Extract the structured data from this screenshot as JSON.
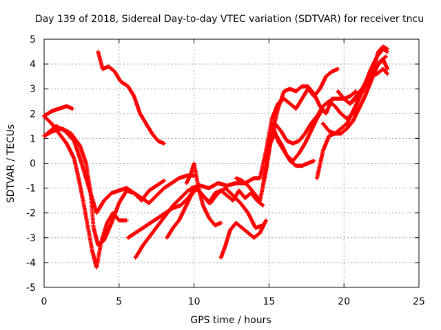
{
  "chart_data": {
    "type": "scatter",
    "title": "Day 139 of 2018, Sidereal Day-to-day VTEC variation (SDTVAR) for receiver tncu",
    "xlabel": "GPS time / hours",
    "ylabel": "SDTVAR / TECUs",
    "xlim": [
      0,
      25
    ],
    "ylim": [
      -5,
      5
    ],
    "xticks": [
      "0",
      "5",
      "10",
      "15",
      "20",
      "25"
    ],
    "yticks": [
      "5",
      "4",
      "3",
      "2",
      "1",
      "0",
      "-1",
      "-2",
      "-3",
      "-4",
      "-5"
    ],
    "grid": true,
    "marker": "+",
    "color": "#ff0000",
    "series": [
      {
        "x": [
          0.0,
          0.5,
          1.0,
          1.5,
          1.9
        ],
        "y": [
          1.9,
          2.1,
          2.2,
          2.3,
          2.2
        ]
      },
      {
        "x": [
          0.0,
          0.6,
          1.2,
          1.8,
          2.4,
          2.8,
          3.1,
          3.3,
          3.6,
          4.0,
          4.5,
          5.0,
          5.5,
          6.0,
          6.5,
          7.0,
          7.5,
          8.0
        ],
        "y": [
          1.1,
          1.3,
          1.4,
          1.2,
          0.7,
          0.0,
          -1.2,
          -2.6,
          -3.3,
          -3.1,
          -2.4,
          -1.6,
          -1.1,
          -1.2,
          -1.5,
          -1.1,
          -0.9,
          -0.7
        ]
      },
      {
        "x": [
          0.0,
          0.5,
          1.0,
          1.5,
          2.0,
          2.3,
          2.6,
          2.9,
          3.2,
          3.5,
          3.8,
          4.2,
          4.6,
          5.0,
          5.5
        ],
        "y": [
          1.9,
          1.6,
          1.2,
          0.8,
          0.2,
          -0.6,
          -1.5,
          -2.5,
          -3.5,
          -4.2,
          -3.2,
          -2.4,
          -2.0,
          -2.3,
          -2.3
        ]
      },
      {
        "x": [
          0.2,
          0.8,
          1.4,
          2.0,
          2.5,
          3.0,
          3.5,
          4.0,
          4.5,
          5.0,
          5.5,
          6.0,
          6.5,
          7.0,
          7.5,
          8.0,
          8.5,
          9.0,
          9.5,
          10.0
        ],
        "y": [
          1.2,
          1.5,
          1.3,
          0.9,
          0.0,
          -1.0,
          -2.0,
          -1.5,
          -1.2,
          -1.1,
          -1.0,
          -1.2,
          -1.4,
          -1.6,
          -1.3,
          -1.0,
          -0.8,
          -0.6,
          -0.5,
          -0.5
        ]
      },
      {
        "x": [
          3.6,
          3.9,
          4.3,
          4.7,
          5.1,
          5.6,
          6.0,
          6.4,
          6.8,
          7.2,
          7.6,
          8.0
        ],
        "y": [
          4.5,
          3.8,
          3.9,
          3.7,
          3.3,
          3.1,
          2.7,
          2.0,
          1.6,
          1.2,
          0.9,
          0.8
        ]
      },
      {
        "x": [
          6.1,
          6.6,
          7.1,
          7.6,
          8.1,
          8.6,
          9.1,
          9.6,
          10.0
        ],
        "y": [
          -3.8,
          -3.3,
          -2.9,
          -2.5,
          -2.1,
          -1.7,
          -1.4,
          -1.1,
          -1.0
        ]
      },
      {
        "x": [
          5.6,
          6.1,
          6.6,
          7.1,
          7.6,
          8.1,
          8.6,
          9.1,
          9.6,
          10.1,
          10.6,
          11.1,
          11.6,
          12.1,
          12.6,
          13.1,
          13.6,
          14.1,
          14.6
        ],
        "y": [
          -3.0,
          -2.8,
          -2.6,
          -2.4,
          -2.2,
          -2.0,
          -1.8,
          -1.7,
          -1.4,
          -1.0,
          -1.3,
          -1.6,
          -1.2,
          -1.0,
          -1.3,
          -1.6,
          -2.0,
          -2.6,
          -2.5
        ]
      },
      {
        "x": [
          8.2,
          8.6,
          9.0,
          9.4,
          9.8,
          10.2,
          10.6,
          11.0,
          11.4,
          11.8,
          12.2,
          12.6,
          13.0,
          13.4,
          13.8,
          14.2,
          14.6
        ],
        "y": [
          -3.0,
          -2.6,
          -2.3,
          -1.8,
          -1.3,
          -1.0,
          -1.3,
          -1.6,
          -1.2,
          -1.1,
          -1.3,
          -1.5,
          -1.1,
          -1.4,
          -1.2,
          -1.5,
          -1.7
        ]
      },
      {
        "x": [
          9.5,
          9.8,
          10.0,
          10.3,
          10.6,
          11.0,
          11.4,
          11.8
        ],
        "y": [
          -0.8,
          -0.4,
          0.0,
          -1.0,
          -1.7,
          -2.2,
          -2.5,
          -2.4
        ]
      },
      {
        "x": [
          11.8,
          12.1,
          12.4,
          12.8,
          13.2,
          13.6,
          14.0,
          14.4,
          14.8
        ],
        "y": [
          -3.8,
          -3.3,
          -2.7,
          -2.4,
          -2.6,
          -2.8,
          -3.0,
          -2.8,
          -2.3
        ]
      },
      {
        "x": [
          9.8,
          10.4,
          11.0,
          11.6,
          12.2,
          12.8,
          13.4,
          14.0,
          14.4,
          14.8,
          15.2,
          15.6,
          16.0,
          16.4,
          16.8,
          17.2,
          17.6,
          18.0,
          18.4,
          18.8,
          19.2,
          19.6
        ],
        "y": [
          -1.0,
          -0.9,
          -1.0,
          -0.8,
          -0.9,
          -0.8,
          -0.8,
          -0.6,
          -0.6,
          0.5,
          1.8,
          2.4,
          2.6,
          2.4,
          2.2,
          2.6,
          3.0,
          2.7,
          3.0,
          3.5,
          3.7,
          3.8
        ]
      },
      {
        "x": [
          12.8,
          13.2,
          13.6,
          14.0,
          14.4,
          14.8,
          15.2,
          15.6,
          16.0,
          16.4,
          16.8,
          17.2,
          17.6,
          18.0,
          18.4,
          18.8,
          19.2,
          19.6,
          20.0,
          20.4,
          20.8
        ],
        "y": [
          -0.6,
          -0.7,
          -0.9,
          -1.2,
          -1.5,
          -0.3,
          1.2,
          2.2,
          2.9,
          3.0,
          2.9,
          3.1,
          3.1,
          2.8,
          2.3,
          2.0,
          2.6,
          2.6,
          2.6,
          2.7,
          2.9
        ]
      },
      {
        "x": [
          14.6,
          15.0,
          15.4,
          15.8,
          16.2,
          16.6,
          17.0,
          17.4,
          17.8,
          18.2,
          18.6,
          19.0,
          19.4,
          19.8,
          20.2,
          20.6,
          21.0,
          21.4,
          21.8,
          22.2,
          22.6,
          22.9
        ],
        "y": [
          -0.9,
          0.6,
          1.6,
          1.3,
          0.9,
          0.8,
          0.9,
          1.2,
          1.6,
          1.9,
          2.3,
          2.5,
          2.3,
          2.0,
          1.8,
          2.0,
          2.6,
          3.2,
          3.8,
          4.3,
          4.6,
          4.5
        ]
      },
      {
        "x": [
          15.2,
          15.6,
          16.0,
          16.4,
          16.8,
          17.2,
          17.6,
          18.0
        ],
        "y": [
          1.6,
          0.9,
          0.5,
          0.1,
          -0.1,
          -0.1,
          0.0,
          0.1
        ]
      },
      {
        "x": [
          15.0,
          15.4,
          15.8,
          16.2,
          16.6,
          17.0,
          17.4,
          17.8,
          18.2,
          18.6
        ],
        "y": [
          0.7,
          1.2,
          0.8,
          0.3,
          0.1,
          0.4,
          0.8,
          1.3,
          1.8,
          2.2
        ]
      },
      {
        "x": [
          18.2,
          18.6,
          19.0,
          19.4,
          19.8,
          20.2,
          20.6,
          21.0,
          21.4,
          21.8,
          22.2,
          22.6,
          22.9
        ],
        "y": [
          -0.6,
          0.5,
          1.1,
          1.2,
          1.2,
          1.4,
          1.7,
          2.2,
          2.7,
          3.3,
          3.9,
          4.2,
          3.8
        ]
      },
      {
        "x": [
          18.6,
          19.0,
          19.4,
          19.8,
          20.2,
          20.6,
          21.0,
          21.4,
          21.8,
          22.2,
          22.6,
          22.9
        ],
        "y": [
          1.6,
          1.3,
          1.2,
          1.4,
          1.6,
          2.1,
          2.6,
          3.1,
          3.5,
          3.6,
          3.8,
          3.6
        ]
      },
      {
        "x": [
          19.6,
          20.0,
          20.4,
          20.8,
          21.2,
          21.6,
          22.0,
          22.4,
          22.8
        ],
        "y": [
          2.9,
          2.6,
          2.4,
          2.6,
          2.9,
          3.3,
          3.7,
          4.1,
          4.3
        ]
      },
      {
        "x": [
          20.4,
          20.8,
          21.2,
          21.6,
          22.0,
          22.3,
          22.6,
          22.9
        ],
        "y": [
          2.4,
          2.7,
          3.0,
          3.4,
          3.9,
          4.5,
          4.7,
          4.6
        ]
      }
    ]
  }
}
